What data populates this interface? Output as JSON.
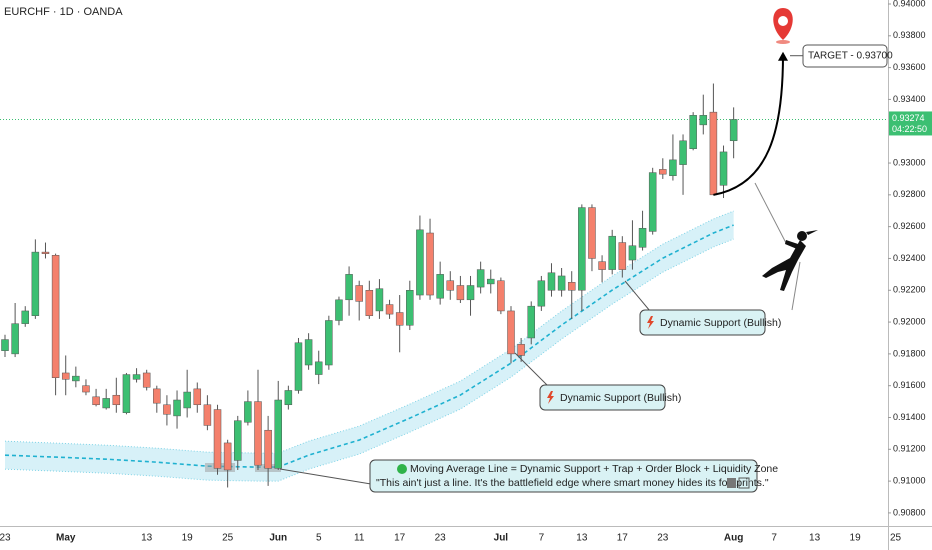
{
  "chart_data": {
    "type": "candlestick",
    "title": "EURCHF · 1D · OANDA",
    "categories": [
      "23",
      null,
      null,
      null,
      null,
      null,
      "May",
      null,
      null,
      null,
      null,
      null,
      null,
      null,
      "13",
      null,
      null,
      null,
      "19",
      null,
      null,
      null,
      "25",
      null,
      null,
      null,
      null,
      "Jun",
      null,
      null,
      null,
      "5",
      null,
      null,
      null,
      "11",
      null,
      null,
      null,
      "17",
      null,
      null,
      null,
      "23",
      null,
      null,
      null,
      null,
      null,
      "Jul",
      null,
      null,
      null,
      "7",
      null,
      null,
      null,
      "13",
      null,
      null,
      null,
      "17",
      null,
      null,
      null,
      "23",
      null,
      null,
      null,
      null,
      null,
      null,
      "Aug",
      null,
      null,
      null,
      "7",
      null,
      null,
      null,
      "13",
      null,
      null,
      null,
      "19",
      null,
      null,
      null,
      "25"
    ],
    "open": [
      0.9182,
      0.918,
      0.9199,
      0.9204,
      0.9244,
      0.9242,
      0.9168,
      0.9163,
      0.916,
      0.9153,
      0.9146,
      0.9154,
      0.9143,
      0.9164,
      0.9168,
      0.9158,
      0.9148,
      0.9141,
      0.9146,
      0.9158,
      0.9148,
      0.9145,
      0.9124,
      0.9113,
      0.9137,
      0.915,
      0.9132,
      0.9108,
      0.9148,
      0.9157,
      0.9173,
      0.9167,
      0.9173,
      0.9201,
      0.9214,
      0.9223,
      0.922,
      0.9207,
      0.9211,
      0.9206,
      0.9198,
      0.9217,
      0.9256,
      0.9215,
      0.9226,
      0.9223,
      0.9214,
      0.9222,
      0.9224,
      0.9226,
      0.9207,
      0.9186,
      0.919,
      0.921,
      0.922,
      0.922,
      0.9225,
      0.922,
      0.9272,
      0.9238,
      0.9233,
      0.925,
      0.9239,
      0.9247,
      0.9257,
      0.9296,
      0.9292,
      0.9299,
      0.9309,
      0.9324,
      0.9332,
      0.9286,
      0.9314,
      null,
      null,
      null,
      null,
      null,
      null,
      null,
      null,
      null,
      null,
      null,
      null,
      null,
      null,
      null,
      null
    ],
    "high": [
      0.9192,
      0.9212,
      0.921,
      0.9252,
      0.925,
      0.9243,
      0.9179,
      0.9172,
      0.9164,
      0.9158,
      0.9158,
      0.9165,
      0.9168,
      0.9171,
      0.917,
      0.916,
      0.9154,
      0.9157,
      0.917,
      0.9162,
      0.9154,
      0.9148,
      0.9126,
      0.9141,
      0.9157,
      0.917,
      0.9141,
      0.9163,
      0.916,
      0.919,
      0.9193,
      0.9182,
      0.9204,
      0.9216,
      0.9235,
      0.9226,
      0.9226,
      0.9227,
      0.9214,
      0.9217,
      0.9226,
      0.9267,
      0.9265,
      0.9238,
      0.9232,
      0.9229,
      0.9229,
      0.9238,
      0.9233,
      0.9228,
      0.921,
      0.919,
      0.9213,
      0.9229,
      0.9237,
      0.9234,
      0.9232,
      0.9274,
      0.9274,
      0.9242,
      0.9258,
      0.9254,
      0.9264,
      0.927,
      0.9297,
      0.9303,
      0.9318,
      0.9318,
      0.9332,
      0.9343,
      0.935,
      0.9311,
      0.9335,
      null,
      null,
      null,
      null,
      null,
      null,
      null,
      null,
      null,
      null,
      null,
      null,
      null,
      null,
      null,
      null
    ],
    "low": [
      0.9178,
      0.9178,
      0.9197,
      0.9202,
      0.924,
      0.9154,
      0.9154,
      0.9159,
      0.9154,
      0.9147,
      0.9145,
      0.9143,
      0.9142,
      0.9162,
      0.9157,
      0.9143,
      0.9135,
      0.9133,
      0.914,
      0.9143,
      0.9132,
      0.9104,
      0.9096,
      0.9107,
      0.9135,
      0.9107,
      0.9097,
      0.9107,
      0.9145,
      0.9155,
      0.917,
      0.9161,
      0.917,
      0.9198,
      0.9204,
      0.9201,
      0.9202,
      0.9202,
      0.9202,
      0.9181,
      0.9195,
      0.9214,
      0.9214,
      0.9211,
      0.9214,
      0.9212,
      0.9204,
      0.9218,
      0.9218,
      0.9205,
      0.9174,
      0.9175,
      0.9186,
      0.9207,
      0.9216,
      0.9216,
      0.9202,
      0.9207,
      0.9232,
      0.9225,
      0.923,
      0.9228,
      0.9233,
      0.9245,
      0.9255,
      0.929,
      0.9289,
      0.928,
      0.9308,
      0.9318,
      0.928,
      0.9278,
      0.9303,
      null,
      null,
      null,
      null,
      null,
      null,
      null,
      null,
      null,
      null,
      null,
      null,
      null,
      null,
      null,
      null
    ],
    "close": [
      0.9189,
      0.9199,
      0.9207,
      0.9244,
      0.9243,
      0.9165,
      0.9164,
      0.9166,
      0.9156,
      0.9148,
      0.9152,
      0.9148,
      0.9167,
      0.9167,
      0.9159,
      0.9149,
      0.9142,
      0.9151,
      0.9156,
      0.9148,
      0.9135,
      0.9108,
      0.9107,
      0.9138,
      0.915,
      0.911,
      0.9108,
      0.9151,
      0.9157,
      0.9187,
      0.9189,
      0.9175,
      0.9201,
      0.9214,
      0.923,
      0.9213,
      0.9204,
      0.9221,
      0.9205,
      0.9198,
      0.922,
      0.9258,
      0.9217,
      0.923,
      0.922,
      0.9214,
      0.9223,
      0.9233,
      0.9227,
      0.9207,
      0.918,
      0.9179,
      0.921,
      0.9226,
      0.9231,
      0.9229,
      0.922,
      0.9272,
      0.924,
      0.9233,
      0.9254,
      0.9233,
      0.9248,
      0.9259,
      0.9294,
      0.9293,
      0.9302,
      0.9314,
      0.933,
      0.933,
      0.928,
      0.9307,
      0.93274,
      null,
      null,
      null,
      null,
      null,
      null,
      null,
      null,
      null,
      null,
      null,
      null,
      null,
      null,
      null,
      null
    ],
    "up_color": "#3cbf72",
    "down_color": "#f4806c",
    "moving_average": {
      "x": [
        0,
        5,
        10,
        15,
        20,
        25,
        27,
        30,
        35,
        40,
        45,
        50,
        55,
        60,
        65,
        70,
        72
      ],
      "values": [
        0.91163,
        0.91151,
        0.91138,
        0.91119,
        0.91094,
        0.91088,
        0.91088,
        0.91163,
        0.91258,
        0.91396,
        0.91541,
        0.91742,
        0.91981,
        0.92201,
        0.92402,
        0.9256,
        0.9261
      ],
      "color": "#1fb1d0"
    },
    "ylim": [
      0.90724,
      0.94
    ],
    "yticks": [
      {
        "value": 0.94,
        "label": "0.94000"
      },
      {
        "value": 0.938,
        "label": "0.93800"
      },
      {
        "value": 0.936,
        "label": "0.93600"
      },
      {
        "value": 0.934,
        "label": "0.93400"
      },
      {
        "value": 0.93,
        "label": "0.93000"
      },
      {
        "value": 0.928,
        "label": "0.92800"
      },
      {
        "value": 0.926,
        "label": "0.92600"
      },
      {
        "value": 0.924,
        "label": "0.92400"
      },
      {
        "value": 0.922,
        "label": "0.92200"
      },
      {
        "value": 0.92,
        "label": "0.92000"
      },
      {
        "value": 0.918,
        "label": "0.91800"
      },
      {
        "value": 0.916,
        "label": "0.91600"
      },
      {
        "value": 0.914,
        "label": "0.91400"
      },
      {
        "value": 0.912,
        "label": "0.91200"
      },
      {
        "value": 0.91,
        "label": "0.91000"
      },
      {
        "value": 0.908,
        "label": "0.90800"
      }
    ],
    "last_price": 0.93274,
    "countdown": "04:22:50",
    "annotations": {
      "target": {
        "label": "TARGET - 0.93700",
        "value": 0.937
      },
      "support_upper": "Dynamic Support (Bullish)",
      "support_lower": "Dynamic Support (Bullish)",
      "callout_line1": "Moving Average Line = Dynamic Support + Trap + Order Block + Liquidity Zone",
      "callout_line2": "\"This ain't just a line. It's the battlefield edge where smart money hides its footprints.\""
    }
  }
}
